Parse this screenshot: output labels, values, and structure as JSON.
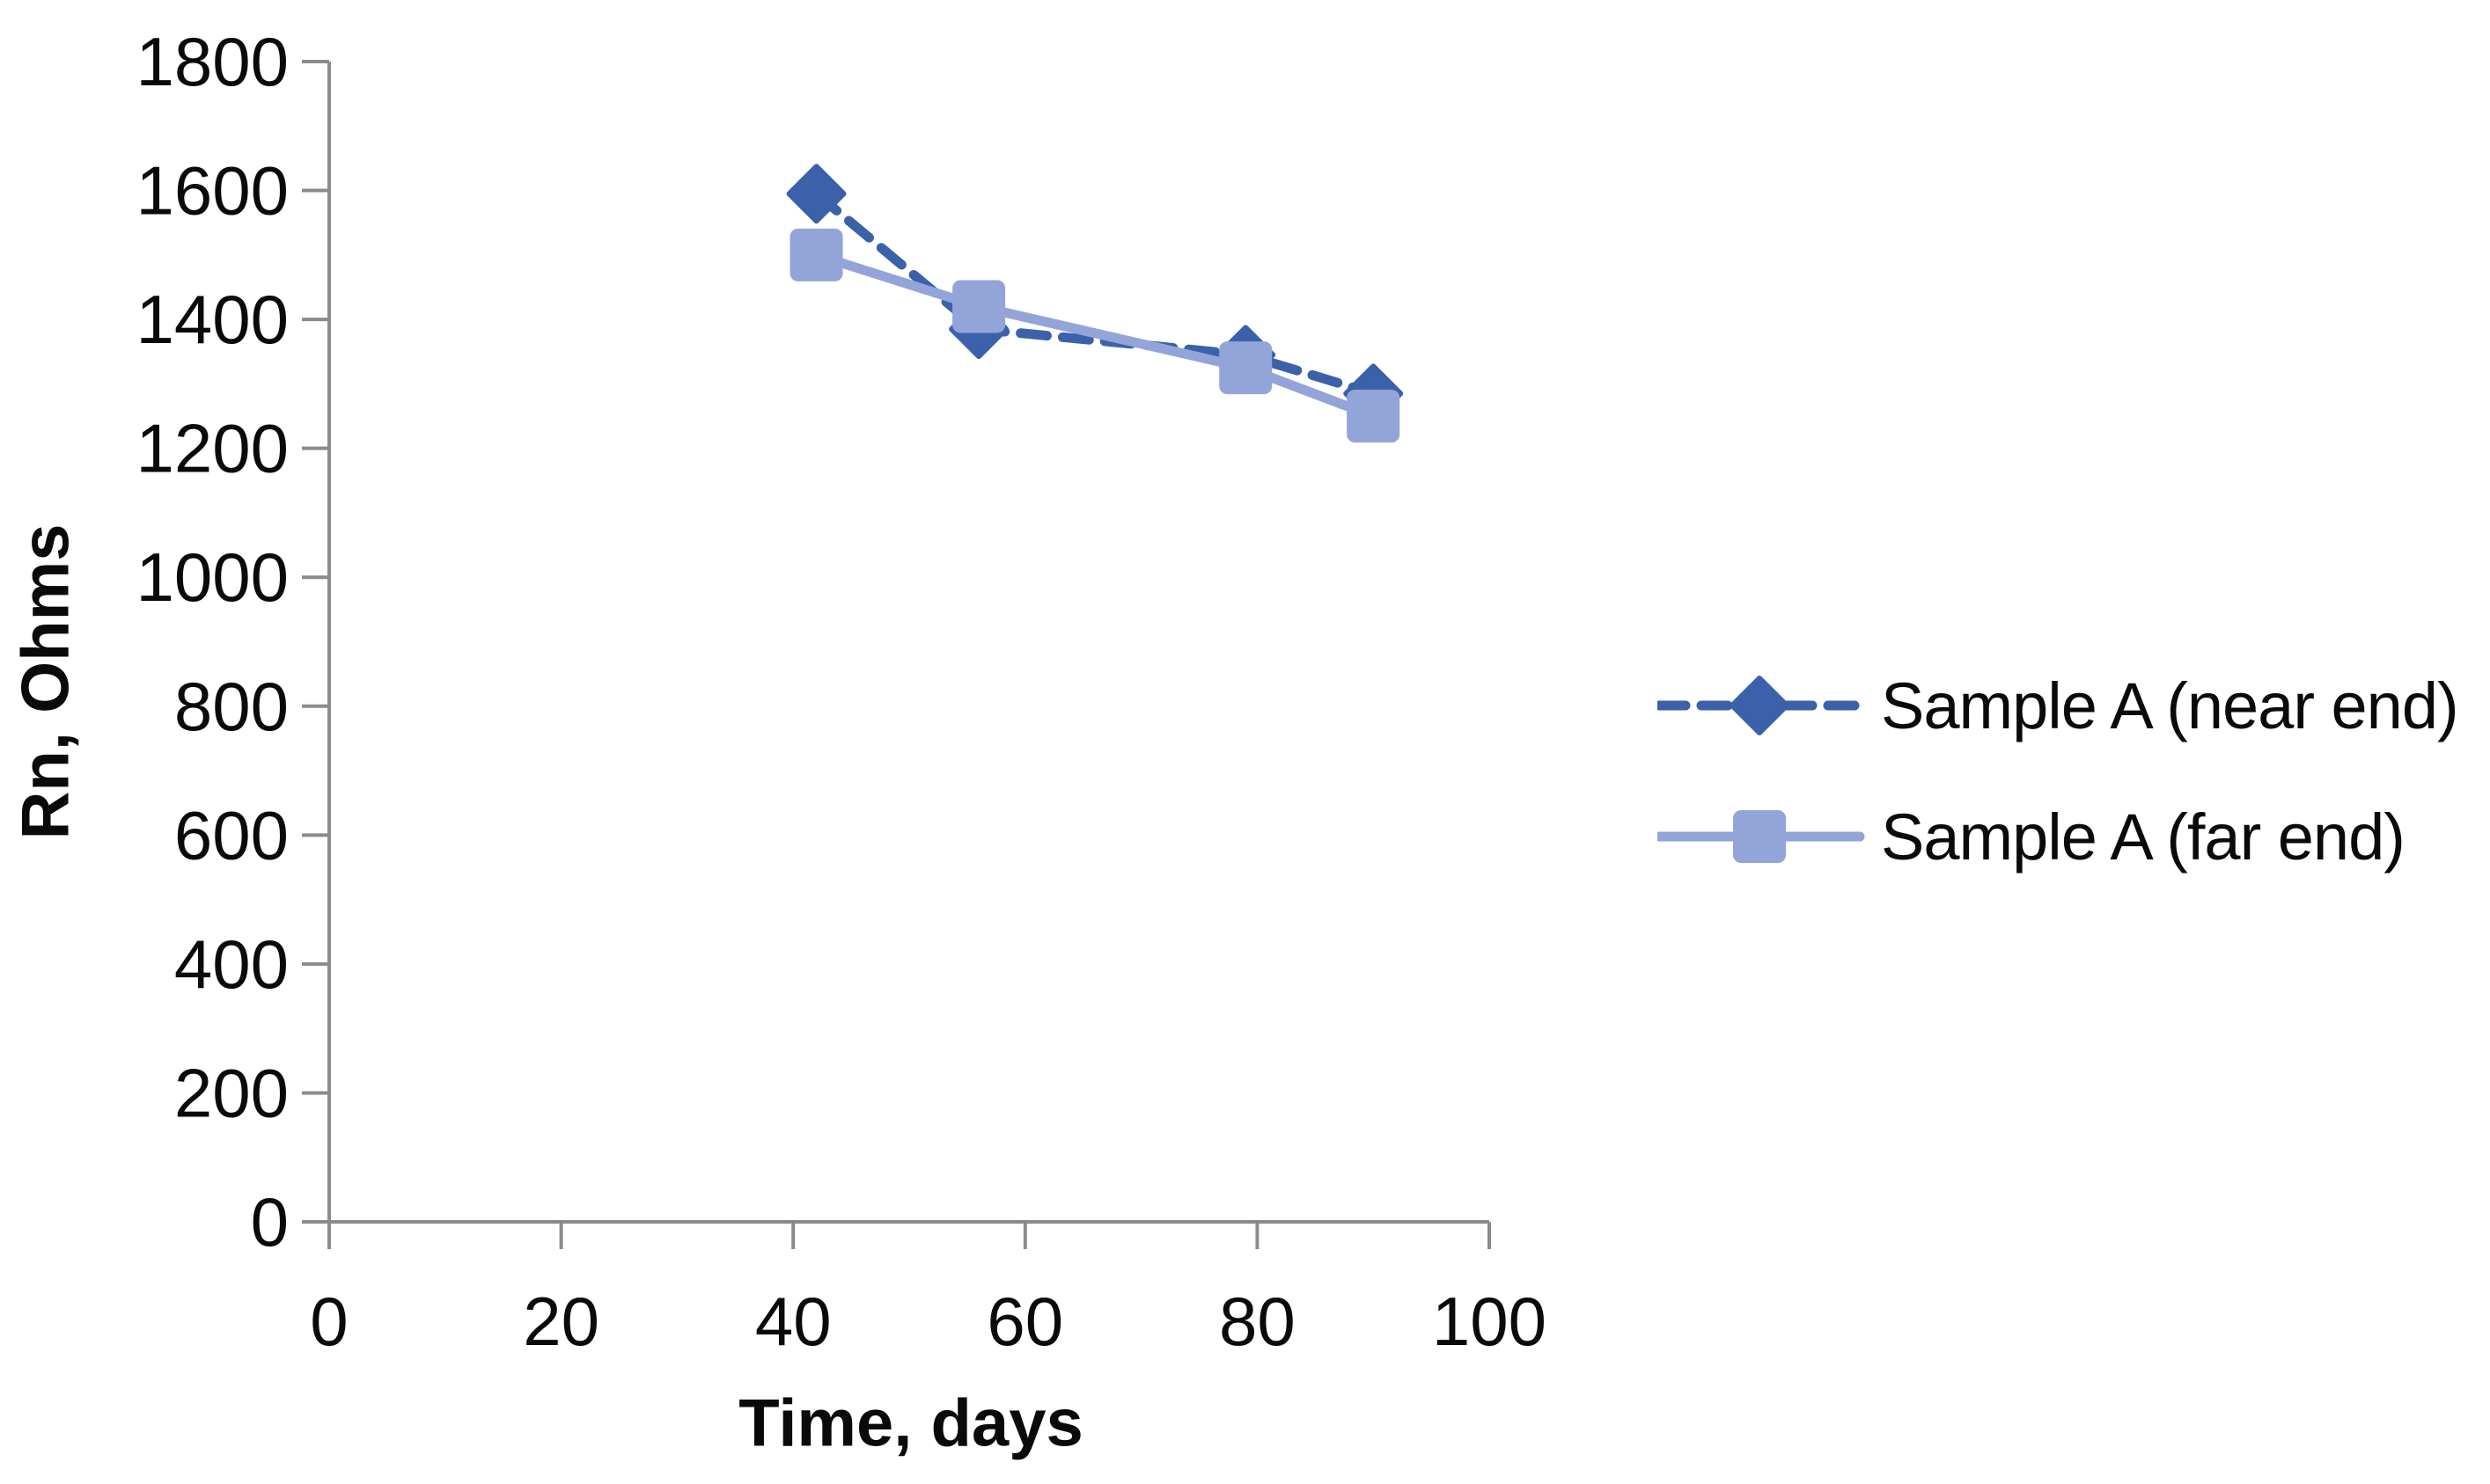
{
  "chart_data": {
    "type": "line",
    "title": "",
    "xlabel": "Time, days",
    "ylabel": "Rn, Ohms",
    "xlim": [
      0,
      100
    ],
    "ylim": [
      0,
      1800
    ],
    "xticks": [
      0,
      20,
      40,
      60,
      80,
      100
    ],
    "yticks": [
      0,
      200,
      400,
      600,
      800,
      1000,
      1200,
      1400,
      1600,
      1800
    ],
    "grid": false,
    "legend_position": "right",
    "axis_color": "#8b8b8b",
    "text_color": "#0a0a0a",
    "series": [
      {
        "name": "Sample A (near end)",
        "color": "#3b61aa",
        "line_style": "dashed",
        "marker": "diamond",
        "x": [
          42,
          56,
          79,
          90
        ],
        "y": [
          1595,
          1385,
          1345,
          1285
        ]
      },
      {
        "name": "Sample A (far end)",
        "color": "#93a4d9",
        "line_style": "solid",
        "marker": "square",
        "x": [
          42,
          56,
          79,
          90
        ],
        "y": [
          1500,
          1420,
          1325,
          1250
        ]
      }
    ]
  }
}
